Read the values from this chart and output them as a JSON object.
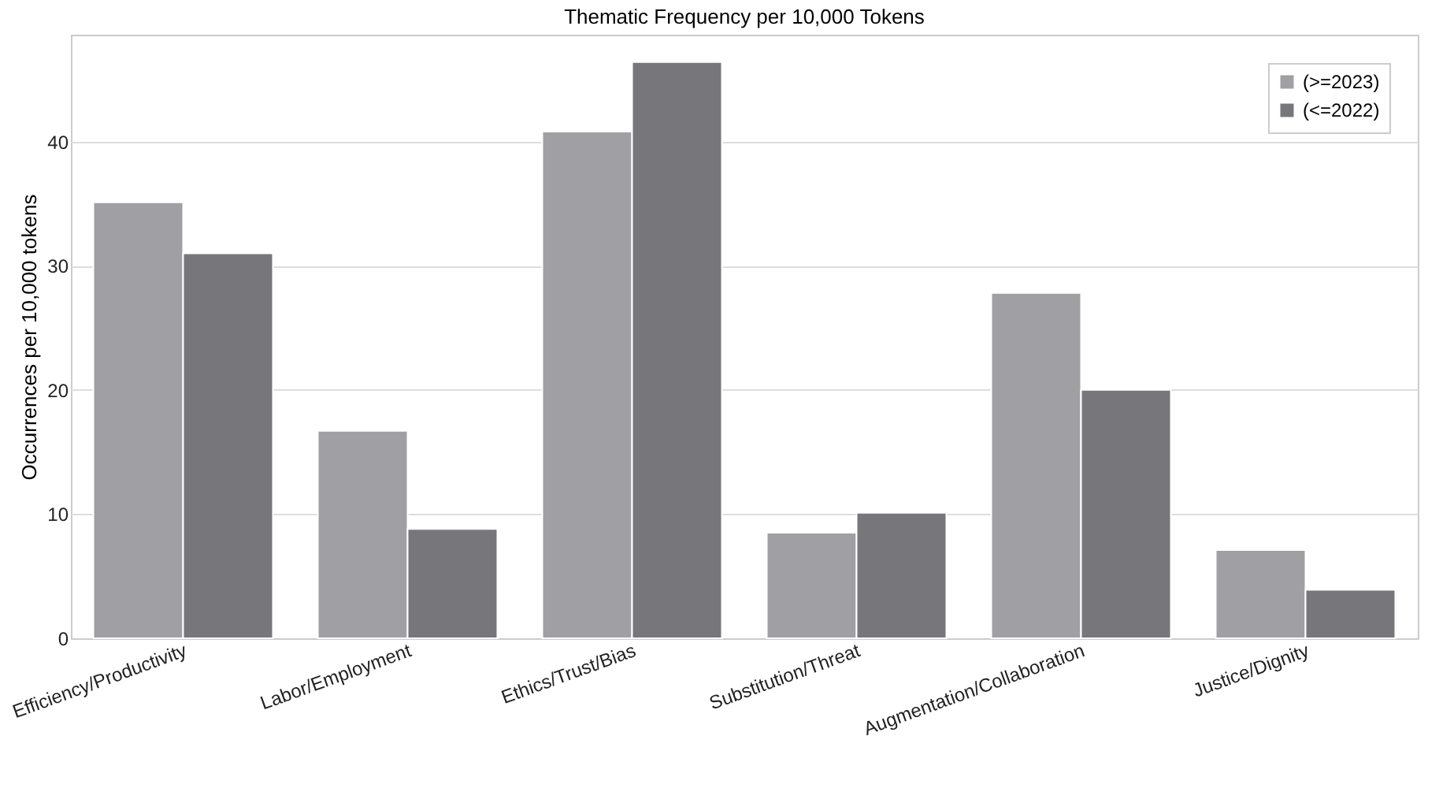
{
  "chart_data": {
    "type": "bar",
    "title": "Thematic Frequency per 10,000 Tokens",
    "ylabel": "Occurrences per 10,000 tokens",
    "categories": [
      "Efficiency/Productivity",
      "Labor/Employment",
      "Ethics/Trust/Bias",
      "Substitution/Threat",
      "Augmentation/Collaboration",
      "Justice/Dignity"
    ],
    "series": [
      {
        "name": "(>=2023)",
        "color": "#a0a0a4",
        "values": [
          35.1,
          16.7,
          40.8,
          8.5,
          27.8,
          7.1
        ]
      },
      {
        "name": "(<=2022)",
        "color": "#77777b",
        "values": [
          31.0,
          8.8,
          46.4,
          10.1,
          20.0,
          3.9
        ]
      }
    ],
    "ylim": [
      0,
      48.6
    ],
    "yticks": [
      0,
      10,
      20,
      30,
      40
    ],
    "grid": "y",
    "legend": "top right"
  }
}
